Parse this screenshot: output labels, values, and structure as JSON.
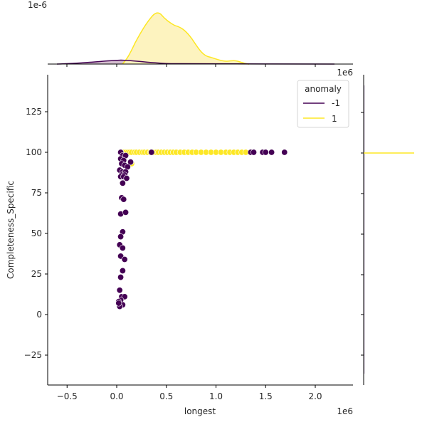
{
  "chart_data": {
    "type": "scatter",
    "subtype": "jointplot",
    "title": "",
    "xlabel": "longest",
    "ylabel": "Completeness_Specific",
    "x_offset_text": "1e6",
    "marginal_x_offset_text": "1e6",
    "marginal_y_scale_text": "1e-6",
    "xlim": [
      -0.7,
      2.4
    ],
    "ylim": [
      -43,
      148
    ],
    "x_scale": 1000000,
    "x_ticks": [
      -0.5,
      0.0,
      0.5,
      1.0,
      1.5,
      2.0
    ],
    "x_tick_labels": [
      "−0.5",
      "0.0",
      "0.5",
      "1.0",
      "1.5",
      "2.0"
    ],
    "y_ticks": [
      125,
      100,
      75,
      50,
      25,
      0,
      -25
    ],
    "y_tick_labels": [
      "125",
      "100",
      "75",
      "50",
      "25",
      "0",
      "−25"
    ],
    "grid": false,
    "legend": {
      "title": "anomaly",
      "position": "upper right",
      "entries": [
        {
          "label": "-1",
          "color": "#440154"
        },
        {
          "label": "1",
          "color": "#fde725"
        }
      ]
    },
    "series": [
      {
        "name": "1",
        "color": "#fde725",
        "points": [
          [
            0.04,
            100
          ],
          [
            0.07,
            100
          ],
          [
            0.09,
            100
          ],
          [
            0.11,
            100
          ],
          [
            0.13,
            100
          ],
          [
            0.15,
            100
          ],
          [
            0.18,
            100
          ],
          [
            0.2,
            100
          ],
          [
            0.23,
            100
          ],
          [
            0.26,
            100
          ],
          [
            0.28,
            100
          ],
          [
            0.31,
            100
          ],
          [
            0.34,
            100
          ],
          [
            0.37,
            100
          ],
          [
            0.4,
            100
          ],
          [
            0.42,
            100
          ],
          [
            0.45,
            100
          ],
          [
            0.48,
            100
          ],
          [
            0.51,
            100
          ],
          [
            0.54,
            100
          ],
          [
            0.57,
            100
          ],
          [
            0.6,
            100
          ],
          [
            0.64,
            100
          ],
          [
            0.68,
            100
          ],
          [
            0.72,
            100
          ],
          [
            0.76,
            100
          ],
          [
            0.8,
            100
          ],
          [
            0.85,
            100
          ],
          [
            0.9,
            100
          ],
          [
            0.95,
            100
          ],
          [
            1.0,
            100
          ],
          [
            1.05,
            100
          ],
          [
            1.1,
            100
          ],
          [
            1.14,
            100
          ],
          [
            1.18,
            100
          ],
          [
            1.22,
            100
          ],
          [
            1.26,
            100
          ],
          [
            1.3,
            100
          ],
          [
            0.07,
            96
          ],
          [
            0.15,
            93
          ]
        ]
      },
      {
        "name": "-1",
        "color": "#440154",
        "points": [
          [
            0.04,
            100
          ],
          [
            0.35,
            100
          ],
          [
            1.35,
            100
          ],
          [
            1.38,
            100
          ],
          [
            1.47,
            100
          ],
          [
            1.5,
            100
          ],
          [
            1.56,
            100
          ],
          [
            1.69,
            100
          ],
          [
            0.06,
            98
          ],
          [
            0.09,
            98
          ],
          [
            0.04,
            96
          ],
          [
            0.07,
            95
          ],
          [
            0.14,
            94
          ],
          [
            0.05,
            93
          ],
          [
            0.08,
            92
          ],
          [
            0.11,
            91
          ],
          [
            0.03,
            89
          ],
          [
            0.06,
            88
          ],
          [
            0.09,
            88
          ],
          [
            0.05,
            86
          ],
          [
            0.08,
            86
          ],
          [
            0.04,
            85
          ],
          [
            0.07,
            85
          ],
          [
            0.1,
            84
          ],
          [
            0.06,
            81
          ],
          [
            0.05,
            72
          ],
          [
            0.07,
            71
          ],
          [
            0.04,
            62
          ],
          [
            0.09,
            63
          ],
          [
            0.06,
            51
          ],
          [
            0.04,
            48
          ],
          [
            0.03,
            43
          ],
          [
            0.06,
            41
          ],
          [
            0.04,
            36
          ],
          [
            0.08,
            34
          ],
          [
            0.06,
            27
          ],
          [
            0.04,
            23
          ],
          [
            0.03,
            15
          ],
          [
            0.05,
            11
          ],
          [
            0.08,
            11
          ],
          [
            0.04,
            9
          ],
          [
            0.02,
            8
          ],
          [
            0.06,
            6
          ],
          [
            0.03,
            5
          ],
          [
            0.02,
            7
          ]
        ]
      }
    ],
    "marginal_x": {
      "type": "kde",
      "series": [
        {
          "name": "1",
          "color": "#fde725",
          "fill": "#fdf4c0",
          "peak_x": 0.42,
          "shoulder_x": 0.65,
          "minor_bump_x": 1.25,
          "range": [
            0.1,
            1.5
          ]
        },
        {
          "name": "-1",
          "color": "#440154",
          "fill": "#c9a7bf",
          "peak_x": 0.05,
          "range": [
            -0.5,
            2.2
          ]
        }
      ]
    },
    "marginal_y": {
      "type": "kde",
      "series": [
        {
          "name": "1",
          "color": "#fde725",
          "spike_y": 100
        },
        {
          "name": "-1",
          "color": "#440154"
        }
      ]
    }
  }
}
